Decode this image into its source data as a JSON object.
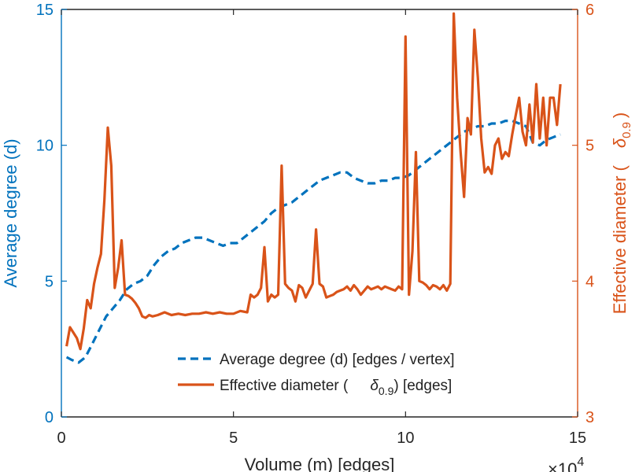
{
  "chart_data": {
    "type": "line",
    "xlabel": "Volume (m) [edges]",
    "x_exponent_label": "×10",
    "x_exponent_power": "4",
    "xlim": [
      0,
      150000
    ],
    "xticks": [
      0,
      50000,
      100000,
      150000
    ],
    "xtick_labels": [
      "0",
      "5",
      "10",
      "15"
    ],
    "ylabel_left": "Average degree (d)",
    "ylim_left": [
      0,
      15
    ],
    "yticks_left": [
      "0",
      "5",
      "10",
      "15"
    ],
    "ylabel_right_prefix": "Effective diameter (",
    "ylabel_right_symbol": "δ",
    "ylabel_right_subscript": "0.9",
    "ylabel_right_suffix": ")",
    "ylim_right": [
      3,
      6
    ],
    "yticks_right": [
      "3",
      "4",
      "5",
      "6"
    ],
    "colors": {
      "left": "#0072BD",
      "right": "#D95319",
      "axis": "#262626"
    },
    "series": [
      {
        "name": "Average degree (d) [edges / vertex]",
        "axis": "left",
        "style": "dashed",
        "color": "#0072BD",
        "x": [
          1500,
          3000,
          5000,
          7000,
          9000,
          11000,
          13000,
          15000,
          17000,
          19000,
          21000,
          23000,
          25000,
          27000,
          29000,
          31000,
          33000,
          35000,
          37000,
          39000,
          41000,
          43000,
          45000,
          47000,
          49000,
          51000,
          53000,
          55000,
          57000,
          59000,
          61000,
          63000,
          65000,
          67000,
          69000,
          71000,
          73000,
          75000,
          77000,
          79000,
          81000,
          83000,
          85000,
          87000,
          89000,
          91000,
          93000,
          95000,
          97000,
          99000,
          101000,
          103000,
          105000,
          107000,
          109000,
          111000,
          113000,
          115000,
          117000,
          119000,
          121000,
          123000,
          125000,
          127000,
          129000,
          131000,
          133000,
          135000,
          137000,
          139000,
          141000,
          143000,
          145000
        ],
        "values": [
          2.2,
          2.1,
          2.0,
          2.2,
          2.7,
          3.2,
          3.7,
          4.0,
          4.3,
          4.7,
          4.9,
          5.0,
          5.2,
          5.6,
          5.9,
          6.1,
          6.2,
          6.4,
          6.5,
          6.6,
          6.6,
          6.5,
          6.4,
          6.3,
          6.4,
          6.4,
          6.6,
          6.8,
          7.0,
          7.2,
          7.5,
          7.7,
          7.8,
          7.9,
          8.1,
          8.3,
          8.5,
          8.7,
          8.8,
          8.9,
          9.0,
          9.0,
          8.8,
          8.7,
          8.6,
          8.6,
          8.7,
          8.7,
          8.8,
          8.8,
          8.9,
          9.1,
          9.3,
          9.5,
          9.7,
          9.9,
          10.1,
          10.3,
          10.5,
          10.6,
          10.7,
          10.7,
          10.8,
          10.8,
          10.9,
          10.9,
          10.8,
          10.7,
          10.1,
          10.0,
          10.2,
          10.3,
          10.4
        ]
      },
      {
        "name": "Effective diameter ( δ0.9) [edges]",
        "axis": "right",
        "style": "solid",
        "color": "#D95319",
        "x": [
          1500,
          2500,
          3500,
          4500,
          5500,
          6500,
          7500,
          8500,
          9500,
          10500,
          11500,
          12500,
          13500,
          14500,
          15500,
          16500,
          17500,
          18500,
          19500,
          20500,
          21500,
          22500,
          23500,
          24500,
          25500,
          26500,
          28000,
          30000,
          32000,
          34000,
          36000,
          38000,
          40000,
          42000,
          44000,
          46000,
          48000,
          50000,
          52000,
          54000,
          55000,
          56000,
          57000,
          58000,
          59000,
          60000,
          61000,
          62000,
          63000,
          64000,
          65000,
          66000,
          67000,
          68000,
          69000,
          70000,
          71000,
          72000,
          73000,
          74000,
          75000,
          76000,
          77000,
          78000,
          79000,
          80000,
          81000,
          82000,
          83000,
          84000,
          85000,
          86000,
          87000,
          88000,
          89000,
          90000,
          91000,
          92000,
          93000,
          94000,
          95000,
          96000,
          97000,
          98000,
          99000,
          100000,
          101000,
          102000,
          103000,
          104000,
          105000,
          106000,
          107000,
          108000,
          109000,
          110000,
          111000,
          112000,
          113000,
          114000,
          115000,
          116000,
          117000,
          118000,
          119000,
          120000,
          121000,
          122000,
          123000,
          124000,
          125000,
          126000,
          127000,
          128000,
          129000,
          130000,
          131000,
          132000,
          133000,
          134000,
          135000,
          136000,
          137000,
          138000,
          139000,
          140000,
          141000,
          142000,
          143000,
          144000,
          145000
        ],
        "values": [
          3.52,
          3.66,
          3.62,
          3.58,
          3.5,
          3.65,
          3.86,
          3.8,
          3.98,
          4.1,
          4.2,
          4.6,
          5.13,
          4.85,
          3.95,
          4.1,
          4.3,
          3.9,
          3.89,
          3.87,
          3.84,
          3.8,
          3.74,
          3.73,
          3.75,
          3.74,
          3.75,
          3.77,
          3.75,
          3.76,
          3.75,
          3.76,
          3.76,
          3.77,
          3.76,
          3.77,
          3.76,
          3.76,
          3.78,
          3.77,
          3.9,
          3.88,
          3.9,
          3.95,
          4.25,
          3.85,
          3.9,
          3.88,
          3.9,
          4.85,
          3.98,
          3.95,
          3.93,
          3.85,
          3.97,
          3.95,
          3.88,
          3.93,
          3.98,
          4.38,
          3.98,
          3.96,
          3.88,
          3.89,
          3.9,
          3.92,
          3.93,
          3.94,
          3.96,
          3.93,
          3.97,
          3.94,
          3.9,
          3.93,
          3.96,
          3.94,
          3.95,
          3.96,
          3.94,
          3.96,
          3.95,
          3.94,
          3.93,
          3.96,
          3.94,
          5.8,
          3.9,
          4.22,
          4.95,
          4.0,
          3.99,
          3.97,
          3.94,
          3.97,
          3.96,
          3.94,
          3.97,
          3.93,
          3.98,
          5.97,
          5.35,
          4.95,
          4.62,
          5.2,
          5.08,
          5.85,
          5.5,
          5.05,
          4.8,
          4.84,
          4.79,
          5.0,
          5.05,
          4.9,
          4.95,
          4.92,
          5.08,
          5.22,
          5.35,
          5.1,
          5.0,
          5.3,
          5.02,
          5.45,
          5.05,
          5.35,
          5.0,
          5.35,
          5.35,
          5.15,
          5.45
        ]
      }
    ],
    "legend": {
      "position": "bottom-right",
      "line1": "Average degree (d) [edges / vertex]",
      "line2_prefix": "Effective diameter (",
      "line2_symbol": "δ",
      "line2_subscript": "0.9",
      "line2_suffix": ") [edges]"
    }
  }
}
